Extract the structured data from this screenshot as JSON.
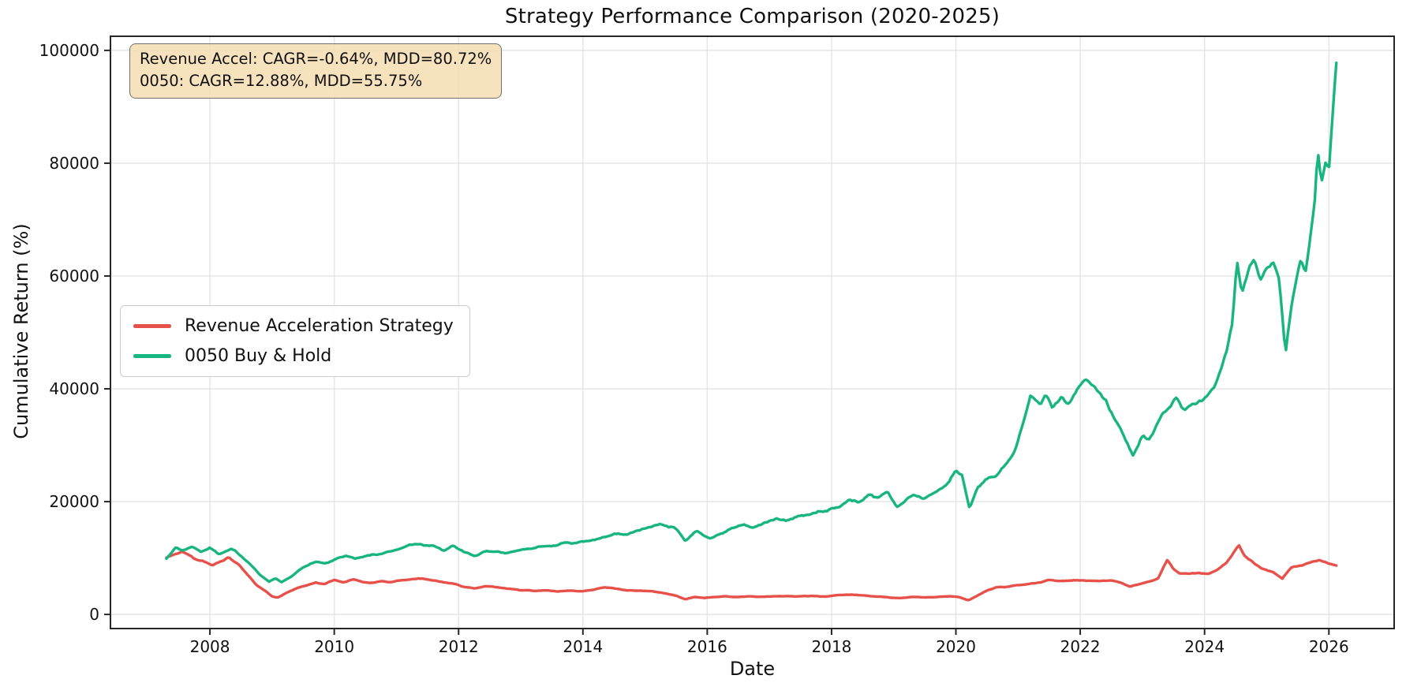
{
  "colors": {
    "background": "#ffffff",
    "series_red": "#e8504a",
    "series_green": "#18b580",
    "annotation_bg": "rgba(245,222,179,0.85)",
    "annotation_border": "#6f6f6f",
    "grid": "#e4e4e4",
    "spine": "#262626",
    "text": "#111111"
  },
  "chart_data": {
    "type": "line",
    "title": "Strategy Performance Comparison (2020-2025)",
    "xlabel": "Date",
    "ylabel": "Cumulative Return (%)",
    "xlim": [
      2006.4,
      2027.05
    ],
    "ylim": [
      -2500,
      102500
    ],
    "x_ticks": [
      2008,
      2010,
      2012,
      2014,
      2016,
      2018,
      2020,
      2022,
      2024,
      2026
    ],
    "y_ticks": [
      0,
      20000,
      40000,
      60000,
      80000,
      100000
    ],
    "grid": true,
    "legend_position": "center-left",
    "annotation": {
      "line1": "Revenue Accel: CAGR=-0.64%, MDD=80.72%",
      "line2": "0050: CAGR=12.88%, MDD=55.75%"
    },
    "series": [
      {
        "name": "Revenue Acceleration Strategy",
        "color": "#e8504a",
        "stats": {
          "cagr_pct": -0.64,
          "mdd_pct": 80.72
        },
        "points": [
          [
            2007.3,
            10000
          ],
          [
            2007.45,
            10800
          ],
          [
            2007.55,
            11200
          ],
          [
            2007.7,
            10300
          ],
          [
            2007.8,
            9600
          ],
          [
            2007.95,
            9100
          ],
          [
            2008.05,
            8700
          ],
          [
            2008.2,
            9500
          ],
          [
            2008.3,
            10100
          ],
          [
            2008.45,
            8900
          ],
          [
            2008.6,
            7200
          ],
          [
            2008.75,
            5200
          ],
          [
            2008.9,
            4100
          ],
          [
            2009.0,
            3200
          ],
          [
            2009.1,
            3000
          ],
          [
            2009.25,
            3900
          ],
          [
            2009.4,
            4600
          ],
          [
            2009.55,
            5200
          ],
          [
            2009.7,
            5600
          ],
          [
            2009.85,
            5400
          ],
          [
            2010.0,
            6100
          ],
          [
            2010.15,
            5600
          ],
          [
            2010.3,
            6200
          ],
          [
            2010.45,
            5800
          ],
          [
            2010.6,
            5600
          ],
          [
            2010.75,
            5900
          ],
          [
            2010.9,
            5700
          ],
          [
            2011.05,
            6000
          ],
          [
            2011.2,
            6200
          ],
          [
            2011.35,
            6400
          ],
          [
            2011.5,
            6200
          ],
          [
            2011.65,
            6000
          ],
          [
            2011.8,
            5600
          ],
          [
            2011.95,
            5400
          ],
          [
            2012.1,
            4900
          ],
          [
            2012.25,
            4600
          ],
          [
            2012.4,
            4900
          ],
          [
            2012.55,
            5000
          ],
          [
            2012.7,
            4700
          ],
          [
            2012.85,
            4500
          ],
          [
            2013.0,
            4300
          ],
          [
            2013.2,
            4200
          ],
          [
            2013.4,
            4300
          ],
          [
            2013.6,
            4100
          ],
          [
            2013.8,
            4200
          ],
          [
            2014.0,
            4100
          ],
          [
            2014.2,
            4400
          ],
          [
            2014.35,
            4800
          ],
          [
            2014.5,
            4600
          ],
          [
            2014.7,
            4300
          ],
          [
            2014.9,
            4200
          ],
          [
            2015.1,
            4100
          ],
          [
            2015.3,
            3800
          ],
          [
            2015.5,
            3300
          ],
          [
            2015.65,
            2700
          ],
          [
            2015.8,
            3100
          ],
          [
            2015.95,
            2900
          ],
          [
            2016.1,
            3100
          ],
          [
            2016.3,
            3200
          ],
          [
            2016.5,
            3100
          ],
          [
            2016.7,
            3200
          ],
          [
            2016.9,
            3100
          ],
          [
            2017.1,
            3200
          ],
          [
            2017.3,
            3300
          ],
          [
            2017.5,
            3200
          ],
          [
            2017.7,
            3300
          ],
          [
            2017.9,
            3200
          ],
          [
            2018.1,
            3400
          ],
          [
            2018.3,
            3500
          ],
          [
            2018.5,
            3400
          ],
          [
            2018.7,
            3200
          ],
          [
            2018.9,
            3000
          ],
          [
            2019.1,
            2900
          ],
          [
            2019.3,
            3100
          ],
          [
            2019.5,
            3000
          ],
          [
            2019.7,
            3100
          ],
          [
            2019.9,
            3200
          ],
          [
            2020.05,
            3100
          ],
          [
            2020.2,
            2500
          ],
          [
            2020.35,
            3400
          ],
          [
            2020.5,
            4300
          ],
          [
            2020.65,
            4800
          ],
          [
            2020.8,
            4900
          ],
          [
            2020.95,
            5100
          ],
          [
            2021.1,
            5300
          ],
          [
            2021.3,
            5600
          ],
          [
            2021.5,
            6100
          ],
          [
            2021.7,
            5900
          ],
          [
            2021.9,
            6100
          ],
          [
            2022.1,
            6000
          ],
          [
            2022.3,
            5900
          ],
          [
            2022.5,
            6000
          ],
          [
            2022.65,
            5600
          ],
          [
            2022.8,
            4900
          ],
          [
            2022.95,
            5400
          ],
          [
            2023.1,
            5800
          ],
          [
            2023.25,
            6400
          ],
          [
            2023.4,
            9800
          ],
          [
            2023.5,
            8200
          ],
          [
            2023.6,
            7400
          ],
          [
            2023.75,
            7300
          ],
          [
            2023.9,
            7400
          ],
          [
            2024.05,
            7200
          ],
          [
            2024.2,
            7900
          ],
          [
            2024.35,
            9200
          ],
          [
            2024.5,
            11500
          ],
          [
            2024.55,
            12300
          ],
          [
            2024.65,
            10400
          ],
          [
            2024.8,
            9000
          ],
          [
            2024.95,
            8100
          ],
          [
            2025.1,
            7600
          ],
          [
            2025.25,
            6300
          ],
          [
            2025.4,
            8400
          ],
          [
            2025.55,
            8800
          ],
          [
            2025.7,
            9300
          ],
          [
            2025.85,
            9700
          ],
          [
            2026.0,
            9100
          ],
          [
            2026.12,
            8800
          ]
        ]
      },
      {
        "name": "0050 Buy & Hold",
        "color": "#18b580",
        "stats": {
          "cagr_pct": 12.88,
          "mdd_pct": 55.75
        },
        "points": [
          [
            2007.3,
            10000
          ],
          [
            2007.45,
            11800
          ],
          [
            2007.55,
            11200
          ],
          [
            2007.7,
            12300
          ],
          [
            2007.85,
            11100
          ],
          [
            2008.0,
            11700
          ],
          [
            2008.15,
            10700
          ],
          [
            2008.35,
            11600
          ],
          [
            2008.5,
            10300
          ],
          [
            2008.65,
            8900
          ],
          [
            2008.8,
            7000
          ],
          [
            2008.95,
            5800
          ],
          [
            2009.05,
            6400
          ],
          [
            2009.15,
            5700
          ],
          [
            2009.3,
            6700
          ],
          [
            2009.5,
            8300
          ],
          [
            2009.7,
            9300
          ],
          [
            2009.85,
            9000
          ],
          [
            2010.0,
            9700
          ],
          [
            2010.2,
            10500
          ],
          [
            2010.35,
            9900
          ],
          [
            2010.6,
            10500
          ],
          [
            2010.8,
            10800
          ],
          [
            2011.0,
            11400
          ],
          [
            2011.2,
            12200
          ],
          [
            2011.4,
            12500
          ],
          [
            2011.6,
            12000
          ],
          [
            2011.75,
            11300
          ],
          [
            2011.9,
            12100
          ],
          [
            2012.1,
            11000
          ],
          [
            2012.25,
            10400
          ],
          [
            2012.4,
            10900
          ],
          [
            2012.6,
            11200
          ],
          [
            2012.75,
            10700
          ],
          [
            2012.9,
            11100
          ],
          [
            2013.1,
            11500
          ],
          [
            2013.3,
            11900
          ],
          [
            2013.5,
            12100
          ],
          [
            2013.7,
            12600
          ],
          [
            2013.9,
            12700
          ],
          [
            2014.1,
            13000
          ],
          [
            2014.3,
            13700
          ],
          [
            2014.5,
            14300
          ],
          [
            2014.7,
            14100
          ],
          [
            2014.9,
            14800
          ],
          [
            2015.1,
            15600
          ],
          [
            2015.3,
            16000
          ],
          [
            2015.45,
            15600
          ],
          [
            2015.65,
            13200
          ],
          [
            2015.85,
            14700
          ],
          [
            2016.05,
            13500
          ],
          [
            2016.3,
            14800
          ],
          [
            2016.5,
            15800
          ],
          [
            2016.7,
            15500
          ],
          [
            2016.9,
            16200
          ],
          [
            2017.1,
            17000
          ],
          [
            2017.3,
            16700
          ],
          [
            2017.5,
            17400
          ],
          [
            2017.7,
            17700
          ],
          [
            2017.9,
            18300
          ],
          [
            2018.1,
            19300
          ],
          [
            2018.3,
            20400
          ],
          [
            2018.45,
            20000
          ],
          [
            2018.6,
            21300
          ],
          [
            2018.75,
            20700
          ],
          [
            2018.9,
            21700
          ],
          [
            2019.05,
            18900
          ],
          [
            2019.2,
            20400
          ],
          [
            2019.35,
            21100
          ],
          [
            2019.5,
            20600
          ],
          [
            2019.7,
            21800
          ],
          [
            2019.9,
            23500
          ],
          [
            2020.0,
            25800
          ],
          [
            2020.1,
            25000
          ],
          [
            2020.22,
            18800
          ],
          [
            2020.35,
            22300
          ],
          [
            2020.5,
            23800
          ],
          [
            2020.65,
            24500
          ],
          [
            2020.8,
            26500
          ],
          [
            2020.95,
            29000
          ],
          [
            2021.1,
            34500
          ],
          [
            2021.2,
            38800
          ],
          [
            2021.35,
            37200
          ],
          [
            2021.45,
            39300
          ],
          [
            2021.55,
            36800
          ],
          [
            2021.7,
            38600
          ],
          [
            2021.8,
            37000
          ],
          [
            2021.95,
            39800
          ],
          [
            2022.1,
            42000
          ],
          [
            2022.25,
            39500
          ],
          [
            2022.4,
            38000
          ],
          [
            2022.55,
            35000
          ],
          [
            2022.7,
            31500
          ],
          [
            2022.85,
            28300
          ],
          [
            2023.0,
            31800
          ],
          [
            2023.1,
            30800
          ],
          [
            2023.25,
            33800
          ],
          [
            2023.4,
            36400
          ],
          [
            2023.55,
            38700
          ],
          [
            2023.7,
            36200
          ],
          [
            2023.85,
            37800
          ],
          [
            2024.0,
            38600
          ],
          [
            2024.15,
            40500
          ],
          [
            2024.25,
            43000
          ],
          [
            2024.35,
            46500
          ],
          [
            2024.45,
            52000
          ],
          [
            2024.52,
            63000
          ],
          [
            2024.6,
            57000
          ],
          [
            2024.72,
            61500
          ],
          [
            2024.8,
            62800
          ],
          [
            2024.9,
            58800
          ],
          [
            2025.0,
            61500
          ],
          [
            2025.1,
            62800
          ],
          [
            2025.2,
            59500
          ],
          [
            2025.3,
            46200
          ],
          [
            2025.4,
            55000
          ],
          [
            2025.5,
            60500
          ],
          [
            2025.55,
            63200
          ],
          [
            2025.62,
            60800
          ],
          [
            2025.7,
            67000
          ],
          [
            2025.78,
            74000
          ],
          [
            2025.82,
            82500
          ],
          [
            2025.88,
            76500
          ],
          [
            2025.95,
            80500
          ],
          [
            2026.0,
            78500
          ],
          [
            2026.05,
            87000
          ],
          [
            2026.12,
            97500
          ]
        ]
      }
    ]
  }
}
